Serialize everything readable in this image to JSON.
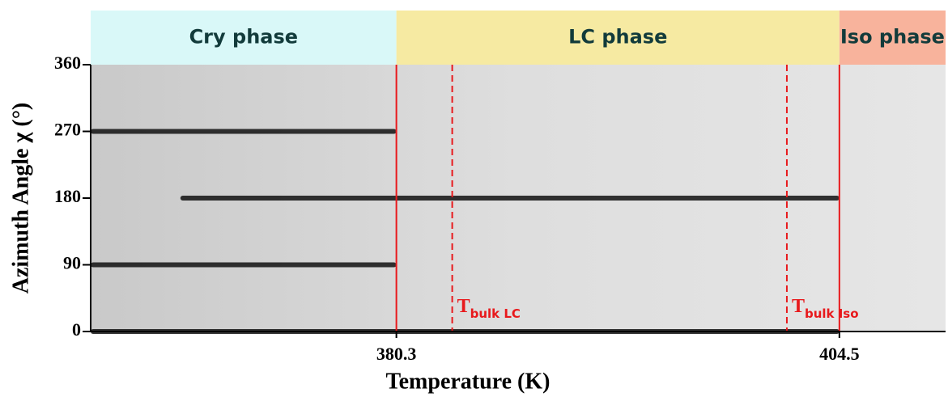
{
  "chart_data": {
    "type": "image",
    "xlabel": "Temperature (K)",
    "ylabel": "Azimuth Angle χ (°)",
    "xlim": [
      363.6,
      410.3
    ],
    "ylim": [
      0,
      360
    ],
    "xticks": [
      380.3,
      404.5
    ],
    "yticks": [
      0,
      90,
      180,
      270,
      360
    ],
    "phases": [
      {
        "name": "Cry phase",
        "from": 363.6,
        "to": 380.3,
        "color": "#d9f8f8"
      },
      {
        "name": "LC phase",
        "from": 380.3,
        "to": 404.5,
        "color": "#f6eaa2"
      },
      {
        "name": "Iso phase",
        "from": 404.5,
        "to": 410.3,
        "color": "#f8b39c"
      }
    ],
    "lines": [
      {
        "value": 380.3,
        "dashed": false,
        "color": "#e8191c"
      },
      {
        "value": 383.35,
        "dashed": true,
        "color": "#e8191c",
        "label": "T",
        "sub": "bulk LC"
      },
      {
        "value": 401.63,
        "dashed": true,
        "color": "#e8191c",
        "label": "T",
        "sub": "bulk Iso"
      },
      {
        "value": 404.5,
        "dashed": false,
        "color": "#e8191c"
      }
    ],
    "bands": [
      {
        "chi": 270,
        "from": 363.6,
        "to": 380.3
      },
      {
        "chi": 180,
        "from": 368.5,
        "to": 404.5
      },
      {
        "chi": 90,
        "from": 363.6,
        "to": 380.3
      },
      {
        "chi": 0,
        "from": 363.6,
        "to": 404.5
      }
    ]
  }
}
